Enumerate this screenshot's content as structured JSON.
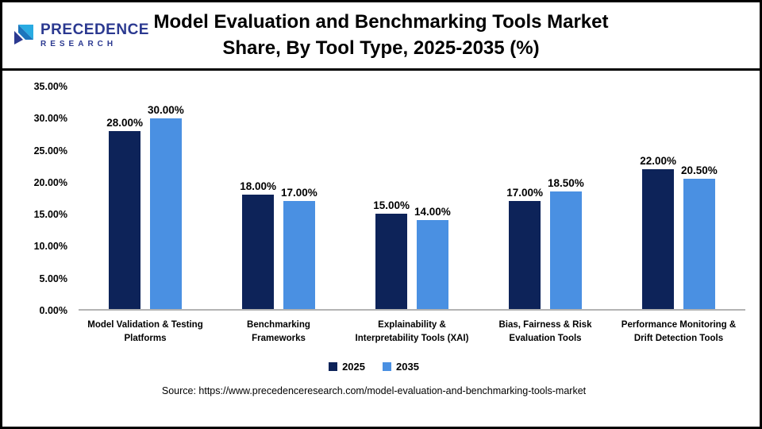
{
  "header": {
    "logo": {
      "line1": "PRECEDENCE",
      "line2": "RESEARCH"
    },
    "title": "Model Evaluation and Benchmarking Tools Market Share, By Tool Type, 2025-2035 (%)"
  },
  "chart_data": {
    "type": "bar",
    "title": "Model Evaluation and Benchmarking Tools Market Share, By Tool Type, 2025-2035 (%)",
    "categories": [
      "Model Validation & Testing Platforms",
      "Benchmarking Frameworks",
      "Explainability & Interpretability Tools (XAI)",
      "Bias, Fairness & Risk Evaluation Tools",
      "Performance Monitoring & Drift Detection Tools"
    ],
    "series": [
      {
        "name": "2025",
        "color": "#0d2359",
        "values": [
          28.0,
          18.0,
          15.0,
          17.0,
          22.0
        ]
      },
      {
        "name": "2035",
        "color": "#4a90e2",
        "values": [
          30.0,
          17.0,
          14.0,
          18.5,
          20.5
        ]
      }
    ],
    "xlabel": "",
    "ylabel": "",
    "ylim": [
      0,
      35
    ],
    "yticks": [
      "35.00%",
      "30.00%",
      "25.00%",
      "20.00%",
      "15.00%",
      "10.00%",
      "5.00%",
      "0.00%"
    ],
    "value_suffix": "%",
    "grid": false,
    "legend_position": "bottom"
  },
  "footer": {
    "source": "Source: https://www.precedenceresearch.com/model-evaluation-and-benchmarking-tools-market"
  }
}
